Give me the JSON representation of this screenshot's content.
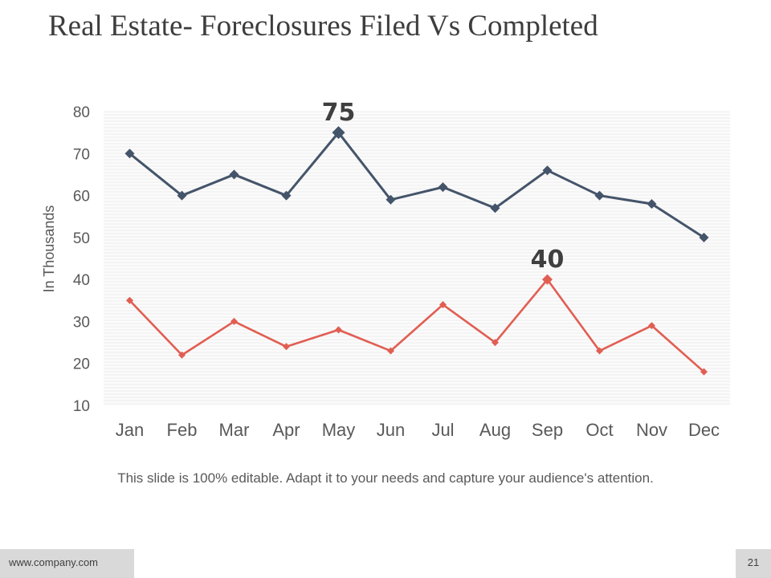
{
  "slide": {
    "title": "Real Estate- Foreclosures Filed Vs Completed",
    "caption": "This slide is 100% editable. Adapt it to your needs and capture your audience's attention.",
    "footer_url": "www.company.com",
    "page_number": "21"
  },
  "chart_data": {
    "type": "line",
    "categories": [
      "Jan",
      "Feb",
      "Mar",
      "Apr",
      "May",
      "Jun",
      "Jul",
      "Aug",
      "Sep",
      "Oct",
      "Nov",
      "Dec"
    ],
    "ylabel": "In Thousands",
    "xlabel": "",
    "ylim": [
      10,
      80
    ],
    "yticks": [
      10,
      20,
      30,
      40,
      50,
      60,
      70,
      80
    ],
    "grid": true,
    "series": [
      {
        "values": [
          70,
          60,
          65,
          60,
          75,
          59,
          62,
          57,
          66,
          60,
          58,
          50
        ],
        "color": "#44546a",
        "marker": "diamond"
      },
      {
        "values": [
          35,
          22,
          30,
          24,
          28,
          23,
          34,
          25,
          40,
          23,
          29,
          18
        ],
        "color": "#e15e52",
        "marker": "diamond"
      }
    ],
    "annotations": [
      {
        "series": 0,
        "category": "May",
        "text": "75"
      },
      {
        "series": 1,
        "category": "Sep",
        "text": "40"
      }
    ]
  }
}
